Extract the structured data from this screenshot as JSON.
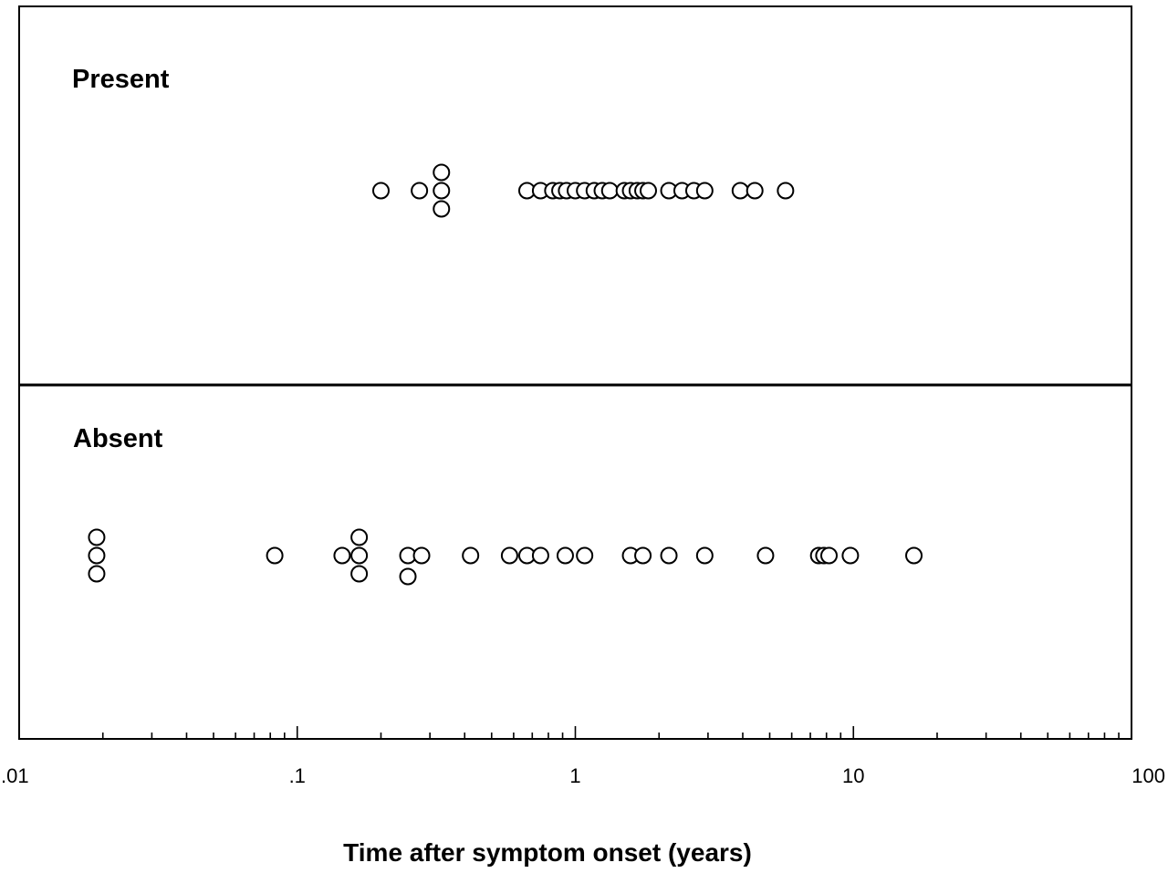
{
  "chart_data": {
    "type": "scatter",
    "title": "",
    "xlabel": "Time after symptom onset (years)",
    "ylabel": "",
    "xscale": "log",
    "xlim": [
      0.01,
      100
    ],
    "grid": false,
    "legend": "none",
    "marker": "open-circle",
    "x_tick_labels": [
      ".01",
      ".1",
      "1",
      "10",
      "100"
    ],
    "x_tick_values": [
      0.01,
      0.1,
      1,
      10,
      100
    ],
    "panels": [
      {
        "label": "Present",
        "points": [
          {
            "x": 0.2,
            "stack": 0
          },
          {
            "x": 0.275,
            "stack": 0
          },
          {
            "x": 0.33,
            "stack": 1
          },
          {
            "x": 0.33,
            "stack": 0
          },
          {
            "x": 0.33,
            "stack": -1
          },
          {
            "x": 0.67,
            "stack": 0
          },
          {
            "x": 0.75,
            "stack": 0
          },
          {
            "x": 0.83,
            "stack": 0
          },
          {
            "x": 0.88,
            "stack": 0
          },
          {
            "x": 0.93,
            "stack": 0
          },
          {
            "x": 1.0,
            "stack": 0
          },
          {
            "x": 1.08,
            "stack": 0
          },
          {
            "x": 1.17,
            "stack": 0
          },
          {
            "x": 1.25,
            "stack": 0
          },
          {
            "x": 1.33,
            "stack": 0
          },
          {
            "x": 1.5,
            "stack": 0
          },
          {
            "x": 1.58,
            "stack": 0
          },
          {
            "x": 1.67,
            "stack": 0
          },
          {
            "x": 1.75,
            "stack": 0
          },
          {
            "x": 1.83,
            "stack": 0
          },
          {
            "x": 2.17,
            "stack": 0
          },
          {
            "x": 2.42,
            "stack": 0
          },
          {
            "x": 2.67,
            "stack": 0
          },
          {
            "x": 2.92,
            "stack": 0
          },
          {
            "x": 3.92,
            "stack": 0
          },
          {
            "x": 4.42,
            "stack": 0
          },
          {
            "x": 5.7,
            "stack": 0
          }
        ]
      },
      {
        "label": "Absent",
        "points": [
          {
            "x": 0.019,
            "stack": 1
          },
          {
            "x": 0.019,
            "stack": 0
          },
          {
            "x": 0.019,
            "stack": -1
          },
          {
            "x": 0.083,
            "stack": 0
          },
          {
            "x": 0.145,
            "stack": 0
          },
          {
            "x": 0.167,
            "stack": 1
          },
          {
            "x": 0.167,
            "stack": 0
          },
          {
            "x": 0.167,
            "stack": -1
          },
          {
            "x": 0.25,
            "stack": 0
          },
          {
            "x": 0.25,
            "stack": -1.15
          },
          {
            "x": 0.28,
            "stack": 0
          },
          {
            "x": 0.42,
            "stack": 0
          },
          {
            "x": 0.58,
            "stack": 0
          },
          {
            "x": 0.67,
            "stack": 0
          },
          {
            "x": 0.75,
            "stack": 0
          },
          {
            "x": 0.92,
            "stack": 0
          },
          {
            "x": 1.08,
            "stack": 0
          },
          {
            "x": 1.58,
            "stack": 0
          },
          {
            "x": 1.75,
            "stack": 0
          },
          {
            "x": 2.17,
            "stack": 0
          },
          {
            "x": 2.92,
            "stack": 0
          },
          {
            "x": 4.83,
            "stack": 0
          },
          {
            "x": 7.5,
            "stack": 0
          },
          {
            "x": 7.83,
            "stack": 0
          },
          {
            "x": 8.17,
            "stack": 0
          },
          {
            "x": 9.75,
            "stack": 0
          },
          {
            "x": 16.5,
            "stack": 0
          }
        ]
      }
    ]
  }
}
